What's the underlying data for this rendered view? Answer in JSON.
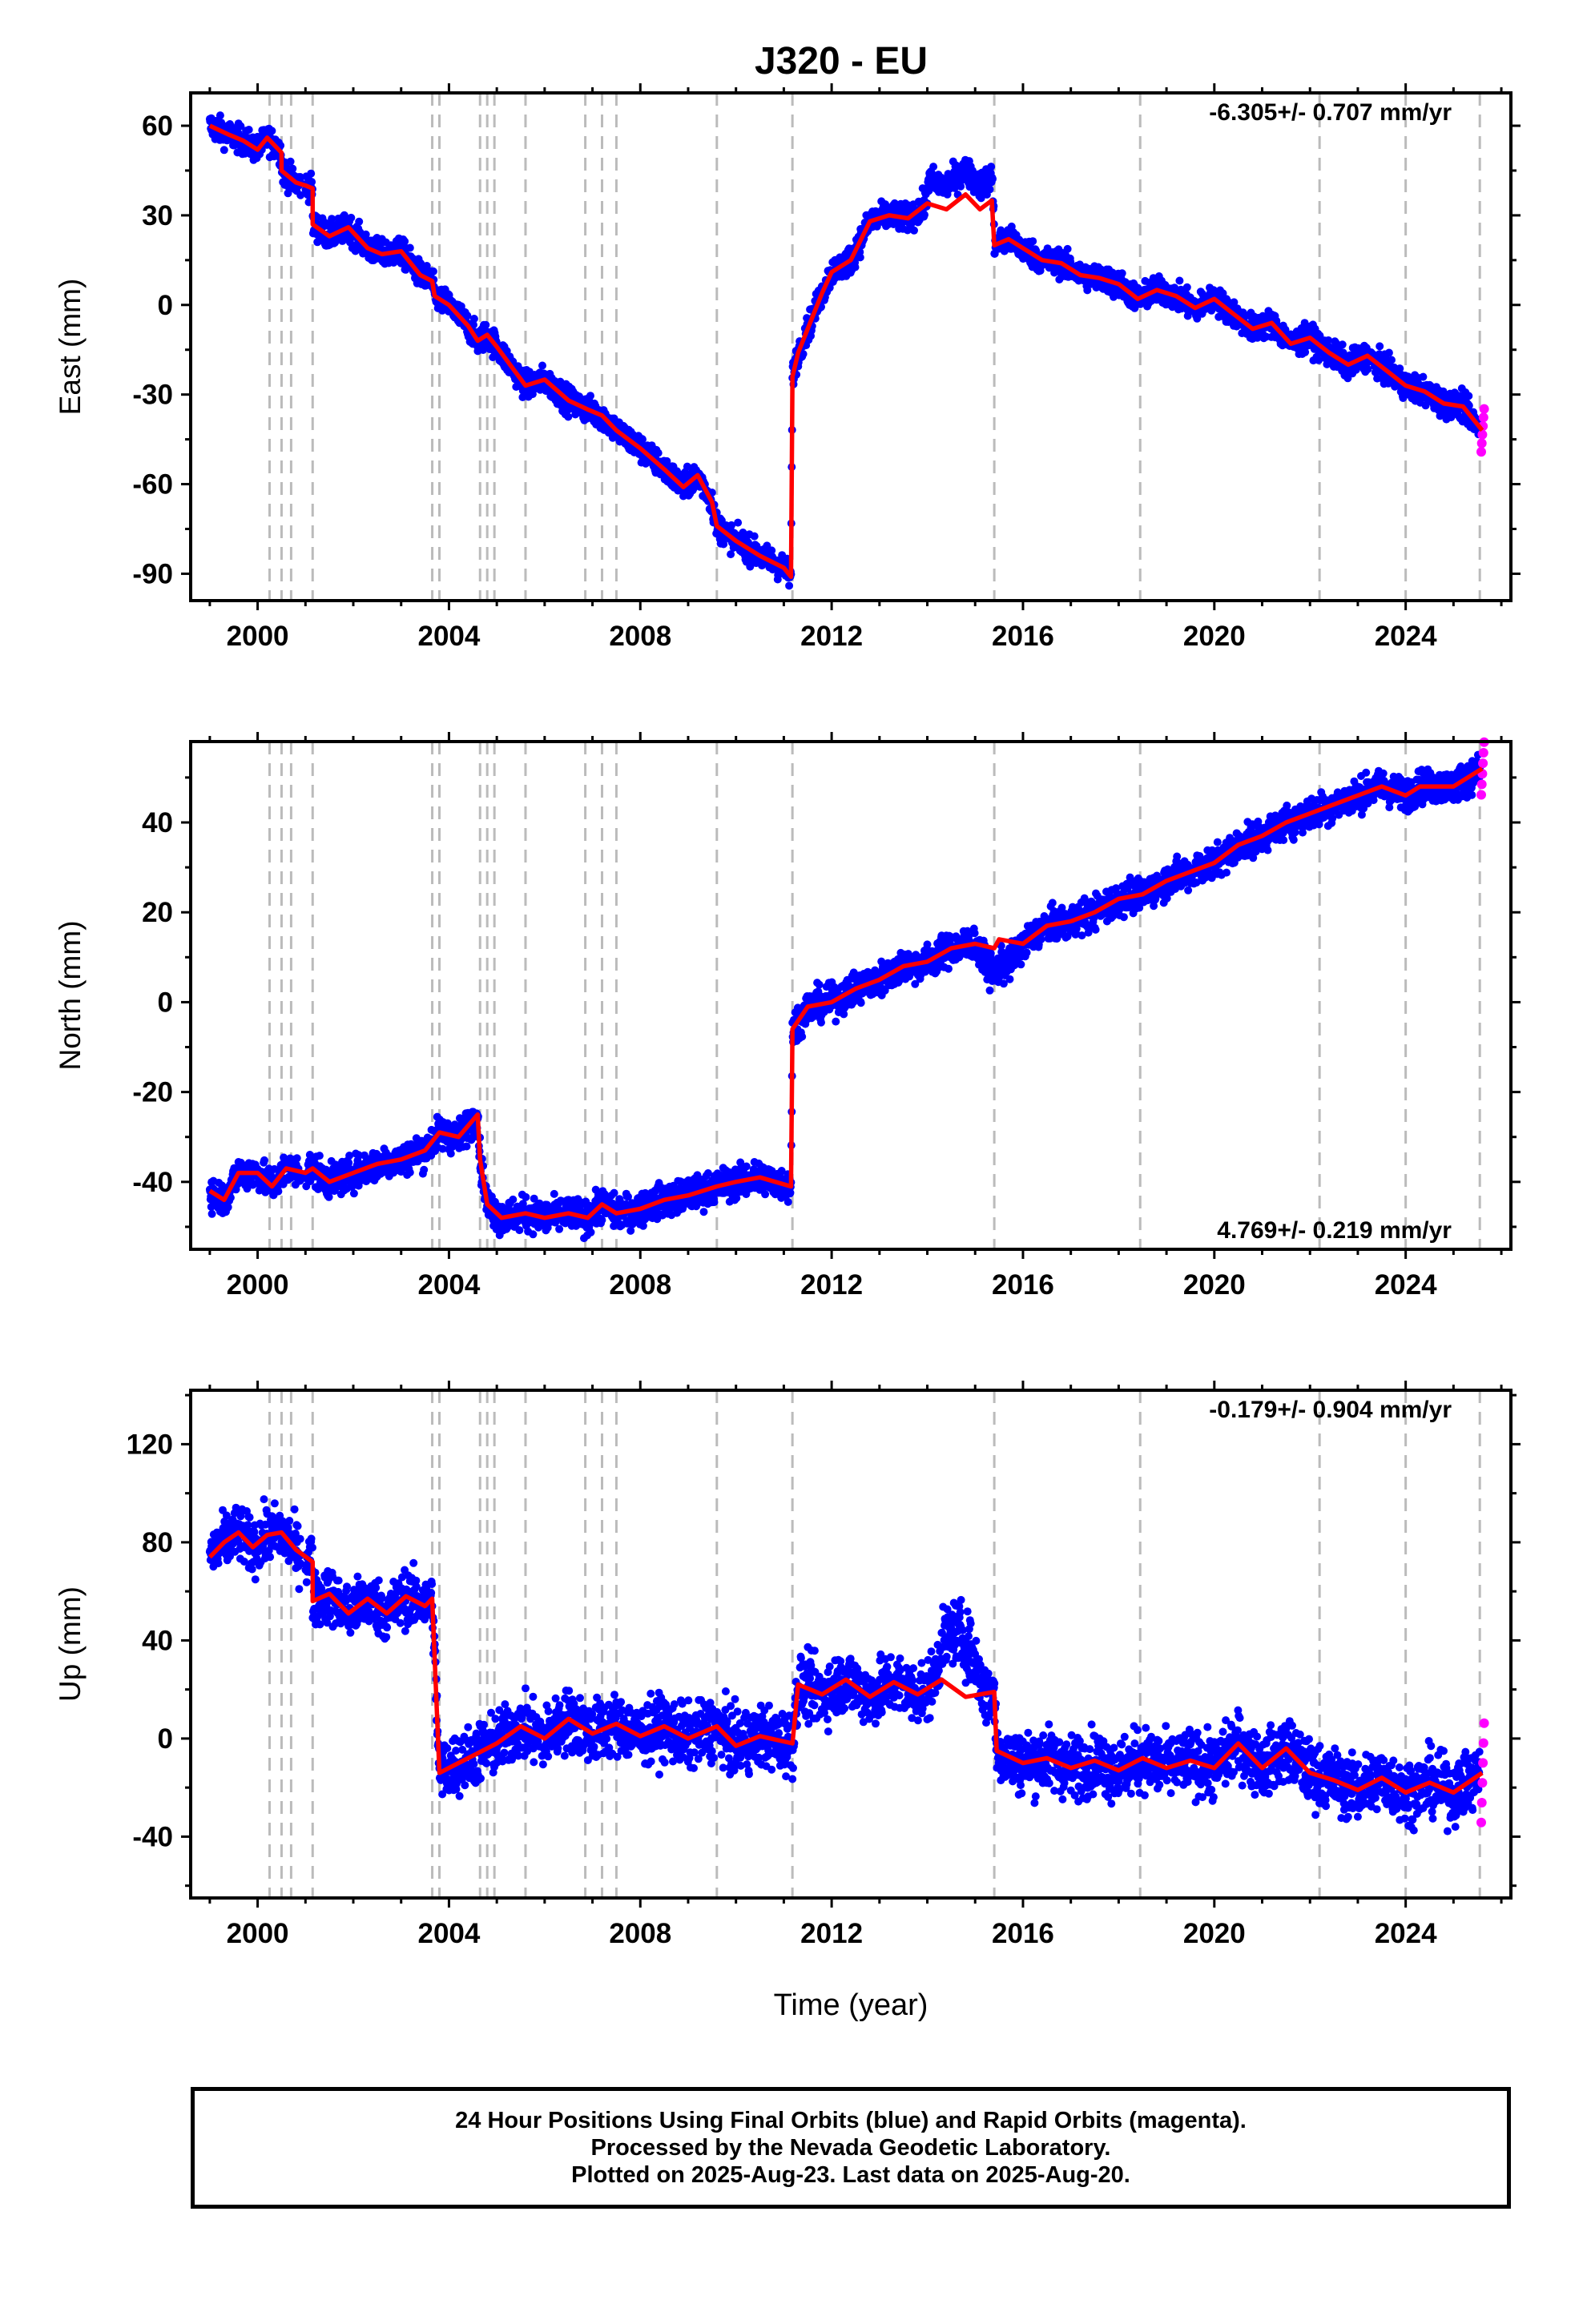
{
  "title": "J320 - EU",
  "colors": {
    "final_orbits": "#0000ff",
    "rapid_orbits": "#ff00ff",
    "model": "#ff0000",
    "event_lines": "#bbbbbb"
  },
  "footer": {
    "line1": "24 Hour Positions Using Final Orbits (blue) and Rapid Orbits (magenta).",
    "line2": "Processed by the Nevada Geodetic Laboratory.",
    "line3": "Plotted on 2025-Aug-23. Last data on 2025-Aug-20."
  },
  "chart_data": {
    "type": "scatter",
    "xlabel": "Time (year)",
    "xlim": [
      1998.6,
      2026.2
    ],
    "x_ticks": [
      "2000",
      "2004",
      "2008",
      "2012",
      "2016",
      "2020",
      "2024"
    ],
    "event_lines": [
      2000.25,
      2000.5,
      2000.7,
      2001.15,
      2003.65,
      2003.8,
      2004.65,
      2004.8,
      2004.95,
      2005.6,
      2006.85,
      2007.2,
      2007.5,
      2009.6,
      2011.18,
      2015.4,
      2018.45,
      2022.2,
      2024.0,
      2025.55
    ],
    "panels": [
      {
        "ylabel": "East (mm)",
        "ylim": [
          -99,
          71
        ],
        "y_ticks": [
          "60",
          "30",
          "0",
          "-30",
          "-60",
          "-90"
        ],
        "y_tick_values": [
          60,
          30,
          0,
          -30,
          -60,
          -90
        ],
        "rate_label": "-6.305+/- 0.707 mm/yr",
        "rate_position": "top-right",
        "model": [
          [
            1999.0,
            60
          ],
          [
            1999.4,
            57
          ],
          [
            1999.7,
            55
          ],
          [
            2000.0,
            52
          ],
          [
            2000.2,
            56
          ],
          [
            2000.5,
            51
          ],
          [
            2000.5,
            45
          ],
          [
            2000.8,
            41
          ],
          [
            2001.0,
            40
          ],
          [
            2001.15,
            39
          ],
          [
            2001.15,
            27
          ],
          [
            2001.5,
            23
          ],
          [
            2001.9,
            26
          ],
          [
            2002.3,
            19
          ],
          [
            2002.6,
            17
          ],
          [
            2003.0,
            18
          ],
          [
            2003.4,
            10
          ],
          [
            2003.65,
            8
          ],
          [
            2003.7,
            3
          ],
          [
            2004.0,
            0
          ],
          [
            2004.4,
            -7
          ],
          [
            2004.6,
            -12
          ],
          [
            2004.8,
            -10
          ],
          [
            2005.0,
            -14
          ],
          [
            2005.6,
            -27
          ],
          [
            2006.0,
            -25
          ],
          [
            2006.5,
            -32
          ],
          [
            2006.9,
            -35
          ],
          [
            2007.2,
            -37
          ],
          [
            2007.5,
            -42
          ],
          [
            2008.0,
            -48
          ],
          [
            2008.5,
            -55
          ],
          [
            2008.9,
            -61
          ],
          [
            2009.2,
            -57
          ],
          [
            2009.5,
            -66
          ],
          [
            2009.6,
            -74
          ],
          [
            2010.0,
            -79
          ],
          [
            2010.5,
            -84
          ],
          [
            2011.0,
            -88
          ],
          [
            2011.15,
            -91
          ],
          [
            2011.18,
            -24
          ],
          [
            2011.3,
            -16
          ],
          [
            2011.6,
            -4
          ],
          [
            2011.8,
            4
          ],
          [
            2012.0,
            11
          ],
          [
            2012.4,
            15
          ],
          [
            2012.8,
            28
          ],
          [
            2013.2,
            30
          ],
          [
            2013.6,
            29
          ],
          [
            2014.0,
            34
          ],
          [
            2014.4,
            32
          ],
          [
            2014.8,
            37
          ],
          [
            2015.1,
            32
          ],
          [
            2015.35,
            35
          ],
          [
            2015.4,
            20
          ],
          [
            2015.7,
            22
          ],
          [
            2016.0,
            19
          ],
          [
            2016.4,
            15
          ],
          [
            2016.8,
            14
          ],
          [
            2017.2,
            10
          ],
          [
            2017.6,
            9
          ],
          [
            2018.0,
            7
          ],
          [
            2018.4,
            2
          ],
          [
            2018.8,
            5
          ],
          [
            2019.2,
            3
          ],
          [
            2019.6,
            -1
          ],
          [
            2020.0,
            2
          ],
          [
            2020.4,
            -3
          ],
          [
            2020.8,
            -8
          ],
          [
            2021.2,
            -6
          ],
          [
            2021.6,
            -13
          ],
          [
            2022.0,
            -11
          ],
          [
            2022.4,
            -16
          ],
          [
            2022.8,
            -20
          ],
          [
            2023.2,
            -17
          ],
          [
            2023.6,
            -22
          ],
          [
            2024.0,
            -27
          ],
          [
            2024.4,
            -29
          ],
          [
            2024.8,
            -33
          ],
          [
            2025.2,
            -34
          ],
          [
            2025.6,
            -42
          ]
        ]
      },
      {
        "ylabel": "North (mm)",
        "ylim": [
          -55,
          58
        ],
        "y_ticks": [
          "40",
          "20",
          "0",
          "-20",
          "-40"
        ],
        "y_tick_values": [
          40,
          20,
          0,
          -20,
          -40
        ],
        "rate_label": "4.769+/- 0.219 mm/yr",
        "rate_position": "bottom-right",
        "model": [
          [
            1999.0,
            -42
          ],
          [
            1999.3,
            -44
          ],
          [
            1999.6,
            -38
          ],
          [
            2000.0,
            -38
          ],
          [
            2000.3,
            -41
          ],
          [
            2000.6,
            -37
          ],
          [
            2001.0,
            -38
          ],
          [
            2001.15,
            -37
          ],
          [
            2001.5,
            -40
          ],
          [
            2002.0,
            -38
          ],
          [
            2002.5,
            -36
          ],
          [
            2003.0,
            -35
          ],
          [
            2003.5,
            -33
          ],
          [
            2003.8,
            -29
          ],
          [
            2004.2,
            -30
          ],
          [
            2004.6,
            -25
          ],
          [
            2004.65,
            -35
          ],
          [
            2004.8,
            -45
          ],
          [
            2005.1,
            -48
          ],
          [
            2005.6,
            -47
          ],
          [
            2006.0,
            -48
          ],
          [
            2006.5,
            -47
          ],
          [
            2006.9,
            -48
          ],
          [
            2007.2,
            -45
          ],
          [
            2007.5,
            -47
          ],
          [
            2008.0,
            -46
          ],
          [
            2008.5,
            -44
          ],
          [
            2009.0,
            -43
          ],
          [
            2009.6,
            -41
          ],
          [
            2010.0,
            -40
          ],
          [
            2010.5,
            -39
          ],
          [
            2011.15,
            -41
          ],
          [
            2011.18,
            -6
          ],
          [
            2011.5,
            -1
          ],
          [
            2012.0,
            0
          ],
          [
            2012.5,
            3
          ],
          [
            2013.0,
            5
          ],
          [
            2013.5,
            8
          ],
          [
            2014.0,
            9
          ],
          [
            2014.5,
            12
          ],
          [
            2015.0,
            13
          ],
          [
            2015.4,
            12
          ],
          [
            2015.5,
            14
          ],
          [
            2016.0,
            13
          ],
          [
            2016.5,
            17
          ],
          [
            2017.0,
            18
          ],
          [
            2017.5,
            20
          ],
          [
            2018.0,
            23
          ],
          [
            2018.5,
            24
          ],
          [
            2019.0,
            27
          ],
          [
            2019.5,
            29
          ],
          [
            2020.0,
            31
          ],
          [
            2020.5,
            35
          ],
          [
            2021.0,
            37
          ],
          [
            2021.5,
            40
          ],
          [
            2022.0,
            42
          ],
          [
            2022.5,
            44
          ],
          [
            2023.0,
            46
          ],
          [
            2023.5,
            48
          ],
          [
            2024.0,
            46
          ],
          [
            2024.3,
            48
          ],
          [
            2025.0,
            48
          ],
          [
            2025.6,
            52
          ]
        ]
      },
      {
        "ylabel": "Up (mm)",
        "ylim": [
          -65,
          142
        ],
        "y_ticks": [
          "120",
          "80",
          "40",
          "0",
          "-40"
        ],
        "y_tick_values": [
          120,
          80,
          40,
          0,
          -40
        ],
        "rate_label": "-0.179+/- 0.904 mm/yr",
        "rate_position": "top-right",
        "model": [
          [
            1999.0,
            74
          ],
          [
            1999.3,
            80
          ],
          [
            1999.6,
            84
          ],
          [
            1999.9,
            78
          ],
          [
            2000.2,
            83
          ],
          [
            2000.5,
            84
          ],
          [
            2000.8,
            77
          ],
          [
            2001.15,
            72
          ],
          [
            2001.15,
            56
          ],
          [
            2001.5,
            59
          ],
          [
            2001.9,
            51
          ],
          [
            2002.3,
            57
          ],
          [
            2002.7,
            51
          ],
          [
            2003.1,
            58
          ],
          [
            2003.5,
            54
          ],
          [
            2003.65,
            57
          ],
          [
            2003.8,
            -14
          ],
          [
            2004.2,
            -10
          ],
          [
            2004.6,
            -6
          ],
          [
            2005.0,
            -2
          ],
          [
            2005.5,
            5
          ],
          [
            2006.0,
            0
          ],
          [
            2006.5,
            8
          ],
          [
            2007.0,
            2
          ],
          [
            2007.5,
            6
          ],
          [
            2008.0,
            1
          ],
          [
            2008.5,
            5
          ],
          [
            2009.0,
            0
          ],
          [
            2009.6,
            5
          ],
          [
            2010.0,
            -3
          ],
          [
            2010.5,
            1
          ],
          [
            2011.18,
            -2
          ],
          [
            2011.3,
            22
          ],
          [
            2011.8,
            18
          ],
          [
            2012.3,
            24
          ],
          [
            2012.8,
            17
          ],
          [
            2013.3,
            23
          ],
          [
            2013.8,
            18
          ],
          [
            2014.3,
            24
          ],
          [
            2014.8,
            17
          ],
          [
            2015.4,
            19
          ],
          [
            2015.45,
            -5
          ],
          [
            2016.0,
            -10
          ],
          [
            2016.5,
            -8
          ],
          [
            2017.0,
            -12
          ],
          [
            2017.5,
            -9
          ],
          [
            2018.0,
            -13
          ],
          [
            2018.5,
            -8
          ],
          [
            2019.0,
            -12
          ],
          [
            2019.5,
            -9
          ],
          [
            2020.0,
            -12
          ],
          [
            2020.5,
            -2
          ],
          [
            2021.0,
            -12
          ],
          [
            2021.5,
            -4
          ],
          [
            2022.0,
            -14
          ],
          [
            2022.5,
            -17
          ],
          [
            2023.0,
            -21
          ],
          [
            2023.5,
            -16
          ],
          [
            2024.0,
            -22
          ],
          [
            2024.5,
            -18
          ],
          [
            2025.0,
            -22
          ],
          [
            2025.6,
            -14
          ]
        ]
      }
    ]
  }
}
